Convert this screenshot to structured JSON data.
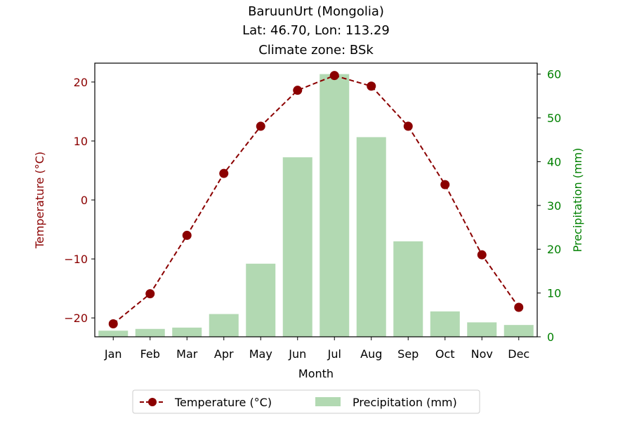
{
  "chart_data": {
    "type": "bar+line",
    "title_lines": [
      "BaruunUrt (Mongolia)",
      "Lat: 46.70, Lon: 113.29",
      "Climate zone: BSk"
    ],
    "categories": [
      "Jan",
      "Feb",
      "Mar",
      "Apr",
      "May",
      "Jun",
      "Jul",
      "Aug",
      "Sep",
      "Oct",
      "Nov",
      "Dec"
    ],
    "xlabel": "Month",
    "y_left": {
      "label": "Temperature (°C)",
      "range": [
        -23.2,
        23.2
      ],
      "ticks": [
        -20,
        -10,
        0,
        10,
        20
      ],
      "tick_labels": [
        "−20",
        "−10",
        "0",
        "10",
        "20"
      ],
      "color": "#8b0000"
    },
    "y_right": {
      "label": "Precipitation (mm)",
      "range": [
        0,
        62.5
      ],
      "ticks": [
        0,
        10,
        20,
        30,
        40,
        50,
        60
      ],
      "tick_labels": [
        "0",
        "10",
        "20",
        "30",
        "40",
        "50",
        "60"
      ],
      "color": "#008000"
    },
    "series": [
      {
        "name": "Temperature (°C)",
        "type": "line",
        "axis": "left",
        "color": "#8b0000",
        "style": "dashed",
        "marker": "circle",
        "values": [
          -21.0,
          -15.9,
          -6.0,
          4.5,
          12.5,
          18.6,
          21.1,
          19.3,
          12.5,
          2.6,
          -9.3,
          -18.2
        ]
      },
      {
        "name": "Precipitation (mm)",
        "type": "bar",
        "axis": "right",
        "color": "#b2d9b2",
        "values": [
          1.4,
          1.8,
          2.1,
          5.2,
          16.7,
          41.0,
          60.0,
          45.6,
          21.8,
          5.8,
          3.3,
          2.7
        ]
      }
    ],
    "legend": {
      "position": "bottom-center"
    },
    "grid": false
  }
}
